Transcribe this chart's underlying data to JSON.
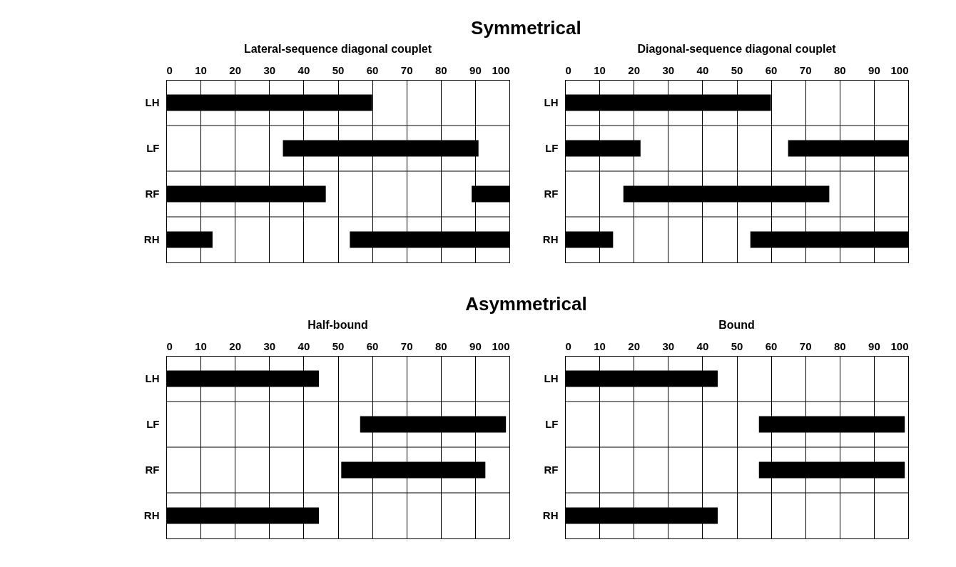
{
  "chart_data": [
    {
      "type": "other",
      "title": "Symmetrical"
    },
    {
      "type": "bar",
      "orientation": "horizontal",
      "title": "Lateral-sequence diagonal couplet",
      "categories": [
        "LH",
        "LF",
        "RF",
        "RH"
      ],
      "xlim": [
        0,
        100
      ],
      "xticks": [
        0,
        10,
        20,
        30,
        40,
        50,
        60,
        70,
        80,
        90,
        100
      ],
      "grid": true,
      "series": [
        {
          "color": "#000000",
          "base": [
            0,
            34,
            0,
            0
          ],
          "values": [
            60,
            57,
            46.5,
            13.5
          ]
        },
        {
          "color": "#000000",
          "base": [
            null,
            null,
            89,
            53.5
          ],
          "values": [
            null,
            null,
            11,
            46.5
          ]
        }
      ]
    },
    {
      "type": "bar",
      "orientation": "horizontal",
      "title": "Diagonal-sequence diagonal couplet",
      "categories": [
        "LH",
        "LF",
        "RF",
        "RH"
      ],
      "xlim": [
        0,
        100
      ],
      "xticks": [
        0,
        10,
        20,
        30,
        40,
        50,
        60,
        70,
        80,
        90,
        100
      ],
      "grid": true,
      "series": [
        {
          "color": "#000000",
          "base": [
            0,
            0,
            17,
            0
          ],
          "values": [
            60,
            22,
            60,
            14
          ]
        },
        {
          "color": "#000000",
          "base": [
            null,
            65,
            null,
            54
          ],
          "values": [
            null,
            35,
            null,
            46
          ]
        }
      ]
    },
    {
      "type": "other",
      "title": "Asymmetrical"
    },
    {
      "type": "bar",
      "orientation": "horizontal",
      "title": "Half-bound",
      "categories": [
        "LH",
        "LF",
        "RF",
        "RH"
      ],
      "xlim": [
        0,
        100
      ],
      "xticks": [
        0,
        10,
        20,
        30,
        40,
        50,
        60,
        70,
        80,
        90,
        100
      ],
      "grid": true,
      "series": [
        {
          "color": "#000000",
          "base": [
            0,
            56.5,
            51,
            0
          ],
          "values": [
            44.5,
            42.5,
            42,
            44.5
          ]
        }
      ]
    },
    {
      "type": "bar",
      "orientation": "horizontal",
      "title": "Bound",
      "categories": [
        "LH",
        "LF",
        "RF",
        "RH"
      ],
      "xlim": [
        0,
        100
      ],
      "xticks": [
        0,
        10,
        20,
        30,
        40,
        50,
        60,
        70,
        80,
        90,
        100
      ],
      "grid": true,
      "series": [
        {
          "color": "#000000",
          "base": [
            0,
            56.5,
            56.5,
            0
          ],
          "values": [
            44.5,
            42.5,
            42.5,
            44.5
          ]
        }
      ]
    }
  ]
}
